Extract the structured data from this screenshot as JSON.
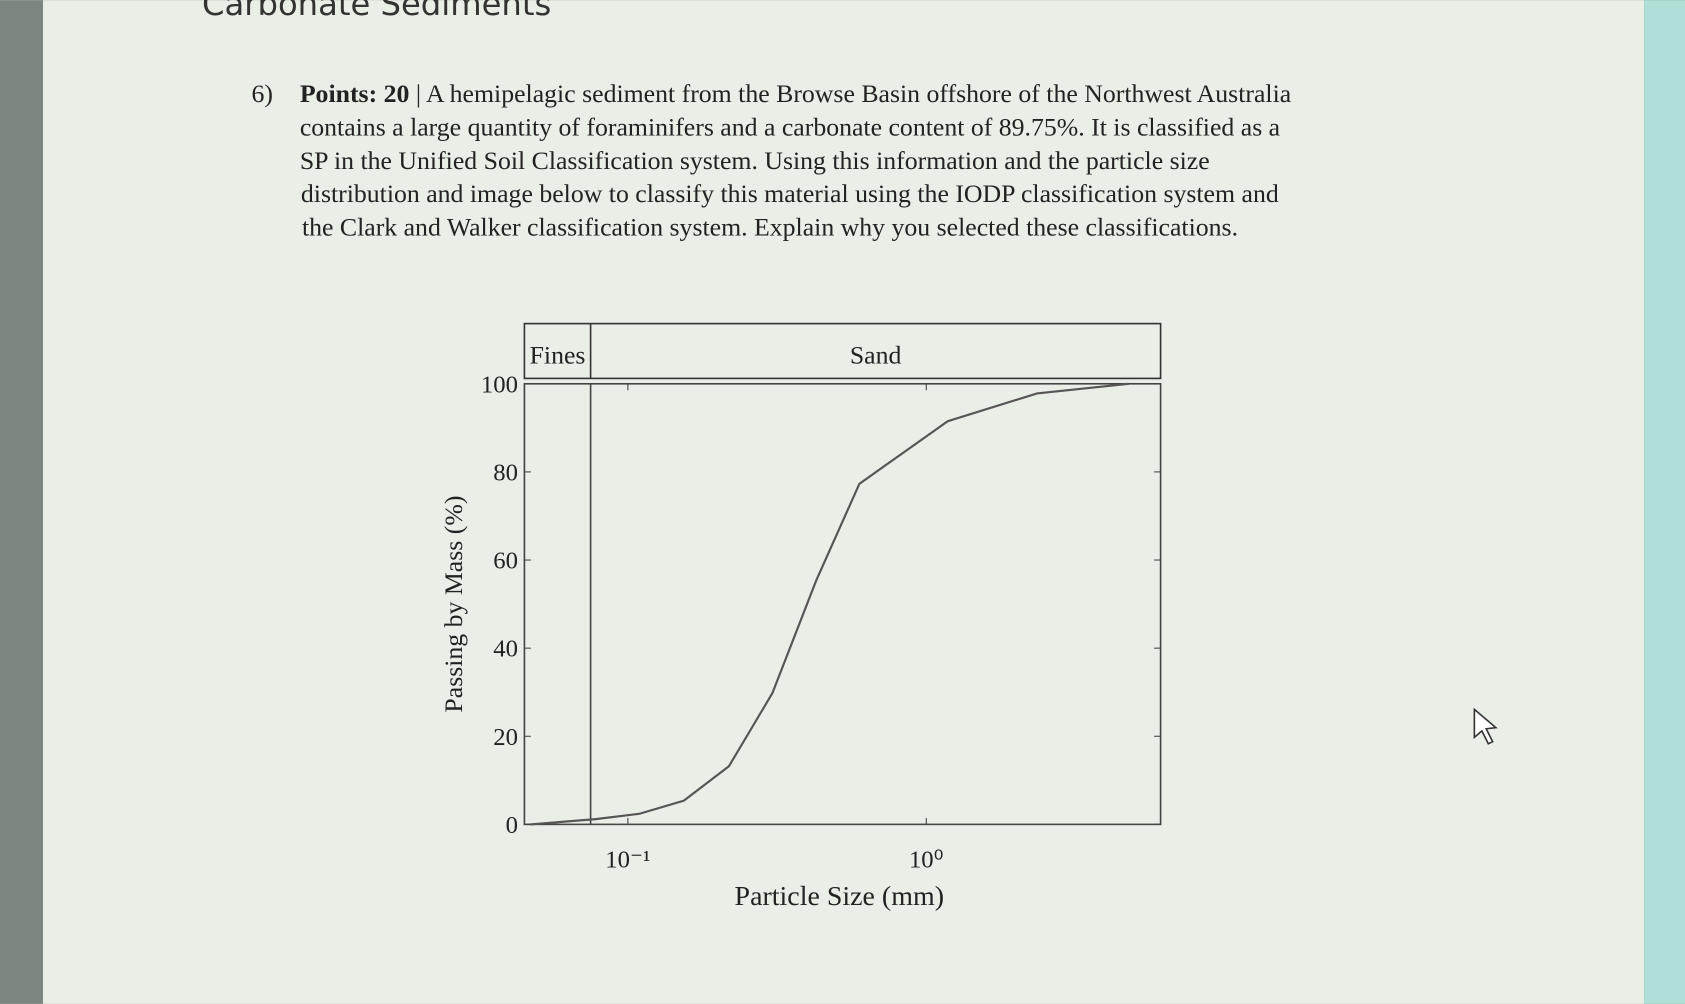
{
  "header": {
    "title": "Carbonate Sediments"
  },
  "question": {
    "number": "6)",
    "points": "Points: 20",
    "lines": [
      " | A hemipelagic sediment from the Browse Basin offshore of the Northwest Australia",
      "contains a large quantity of foraminifers and a carbonate content of 89.75%. It is classified as a",
      "SP in the Unified Soil Classification system. Using this information and the particle size",
      "distribution and image below to classify this material using the IODP classification system and",
      "the Clark and Walker classification system. Explain why you selected these classifications."
    ]
  },
  "chart_data": {
    "type": "line",
    "x_scale": "log",
    "band_labels": [
      "Fines",
      "Sand"
    ],
    "boundary": 0.075,
    "x_label": "Particle Size (mm)",
    "y_label": "Passing by Mass (%)",
    "x": [
      0.047,
      0.078,
      0.109,
      0.154,
      0.218,
      0.305,
      0.428,
      0.597,
      1.18,
      2.35,
      4.77
    ],
    "values": [
      0,
      1.2,
      2.4,
      5.4,
      13.2,
      29.8,
      55.4,
      77.3,
      91.5,
      97.8,
      100
    ],
    "color": "#555555",
    "xlim": [
      0.045,
      6.1
    ],
    "ylim": [
      0,
      100
    ],
    "xticks": [
      {
        "value": 0.1,
        "label": "10⁻¹"
      },
      {
        "value": 1,
        "label": "10⁰"
      }
    ],
    "yticks": [
      0,
      20,
      40,
      60,
      80,
      100
    ]
  }
}
